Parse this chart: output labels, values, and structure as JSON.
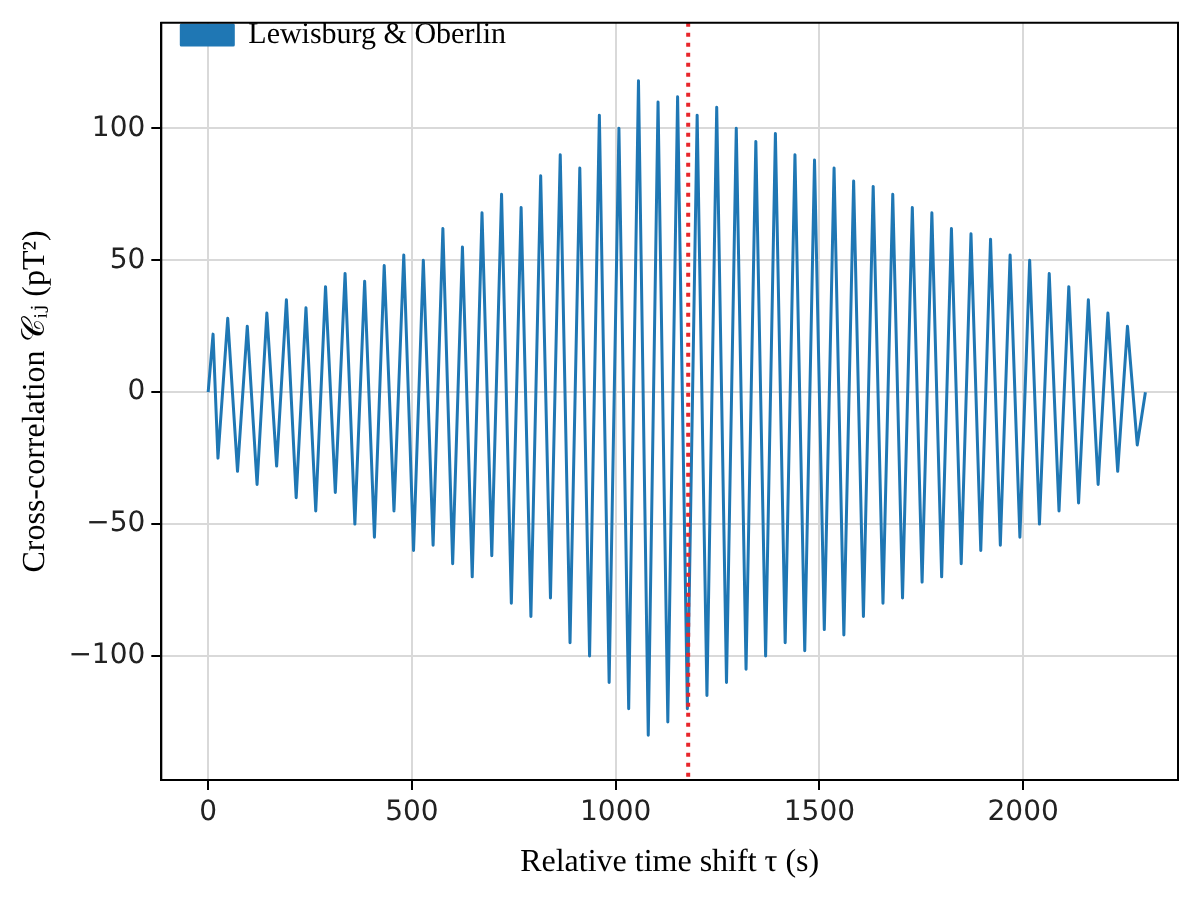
{
  "chart_data": {
    "type": "line",
    "xlabel": "Relative time shift τ (s)",
    "ylabel": "Cross-correlation 𝒞ᵢⱼ (pT²)",
    "xlim": [
      -115,
      2380
    ],
    "xticks": [
      0,
      500,
      1000,
      1500,
      2000
    ],
    "ylim": [
      -147,
      140
    ],
    "yticks": [
      -100,
      -50,
      0,
      50,
      100
    ],
    "grid": true,
    "legend": "top left",
    "marker": "none",
    "line_style": "solid",
    "ref_lines": [
      {
        "axis": "x",
        "value": 1178,
        "color": "#e8262b",
        "line_style": "dotted"
      }
    ],
    "series": [
      {
        "name": "Lewisburg & Oberlin",
        "color": "#1f77b4",
        "x": [
          0,
          12,
          24,
          48,
          72,
          96,
          120,
          144,
          168,
          192,
          216,
          240,
          264,
          288,
          312,
          336,
          360,
          384,
          408,
          432,
          456,
          480,
          504,
          528,
          552,
          576,
          600,
          624,
          648,
          672,
          696,
          720,
          744,
          768,
          792,
          816,
          840,
          864,
          888,
          912,
          936,
          960,
          984,
          1008,
          1032,
          1056,
          1080,
          1104,
          1128,
          1152,
          1176,
          1200,
          1224,
          1248,
          1272,
          1296,
          1320,
          1344,
          1368,
          1392,
          1416,
          1440,
          1464,
          1488,
          1512,
          1536,
          1560,
          1584,
          1608,
          1632,
          1656,
          1680,
          1704,
          1728,
          1752,
          1776,
          1800,
          1824,
          1848,
          1872,
          1896,
          1920,
          1944,
          1968,
          1992,
          2016,
          2040,
          2064,
          2088,
          2112,
          2136,
          2160,
          2184,
          2208,
          2232,
          2256,
          2280,
          2300
        ],
        "values": [
          0,
          22,
          -25,
          28,
          -30,
          25,
          -35,
          30,
          -28,
          35,
          -40,
          32,
          -45,
          40,
          -38,
          45,
          -50,
          42,
          -55,
          48,
          -45,
          52,
          -60,
          50,
          -58,
          62,
          -65,
          55,
          -70,
          68,
          -62,
          75,
          -80,
          70,
          -85,
          82,
          -78,
          90,
          -95,
          85,
          -100,
          105,
          -110,
          100,
          -120,
          118,
          -130,
          110,
          -125,
          112,
          -120,
          105,
          -115,
          108,
          -110,
          100,
          -105,
          95,
          -100,
          98,
          -95,
          90,
          -98,
          88,
          -90,
          85,
          -92,
          80,
          -85,
          78,
          -80,
          75,
          -78,
          70,
          -72,
          68,
          -70,
          62,
          -65,
          60,
          -60,
          58,
          -58,
          52,
          -55,
          50,
          -50,
          45,
          -45,
          40,
          -42,
          35,
          -35,
          30,
          -30,
          25,
          -20,
          0
        ]
      }
    ]
  }
}
